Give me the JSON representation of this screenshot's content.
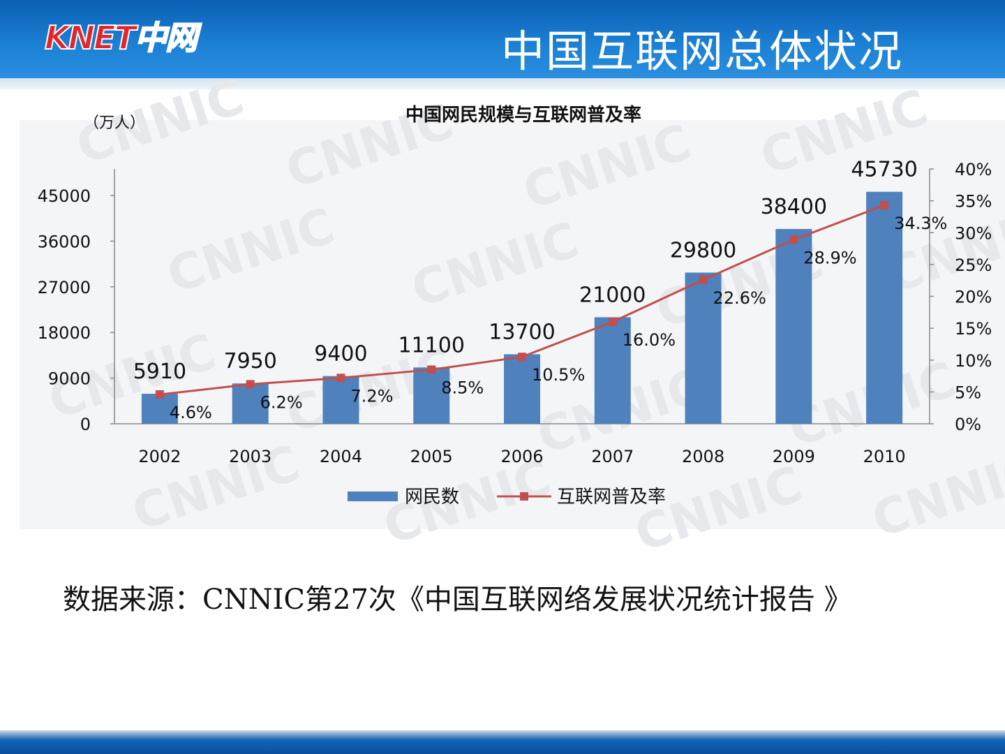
{
  "header": {
    "logo_text": "KNET中网",
    "title": "中国互联网总体状况"
  },
  "chart_data": {
    "type": "bar",
    "title": "中国网民规模与互联网普及率",
    "unit_label": "（万人）",
    "categories": [
      "2002",
      "2003",
      "2004",
      "2005",
      "2006",
      "2007",
      "2008",
      "2009",
      "2010"
    ],
    "series": [
      {
        "name": "网民数",
        "type": "bar",
        "axis": "left",
        "color": "#4f81bd",
        "values": [
          5910,
          7950,
          9400,
          11100,
          13700,
          21000,
          29800,
          38400,
          45730
        ],
        "labels": [
          "5910",
          "7950",
          "9400",
          "11100",
          "13700",
          "21000",
          "29800",
          "38400",
          "45730"
        ]
      },
      {
        "name": "互联网普及率",
        "type": "line",
        "axis": "right",
        "color": "#c0504d",
        "values": [
          4.6,
          6.2,
          7.2,
          8.5,
          10.5,
          16.0,
          22.6,
          28.9,
          34.3
        ],
        "labels": [
          "4.6%",
          "6.2%",
          "7.2%",
          "8.5%",
          "10.5%",
          "16.0%",
          "22.6%",
          "28.9%",
          "34.3%"
        ]
      }
    ],
    "y_left": {
      "min": 0,
      "max": 50000,
      "ticks": [
        0,
        9000,
        18000,
        27000,
        36000,
        45000
      ],
      "tick_labels": [
        "0",
        "9000",
        "18000",
        "27000",
        "36000",
        "45000"
      ]
    },
    "y_right": {
      "min": 0,
      "max": 40,
      "ticks": [
        0,
        5,
        10,
        15,
        20,
        25,
        30,
        35,
        40
      ],
      "tick_labels": [
        "0%",
        "5%",
        "10%",
        "15%",
        "20%",
        "25%",
        "30%",
        "35%",
        "40%"
      ]
    },
    "legend_position": "bottom",
    "grid": false
  },
  "watermark": "CNNIC",
  "source_text": "数据来源：CNNIC第27次《中国互联网络发展状况统计报告 》"
}
